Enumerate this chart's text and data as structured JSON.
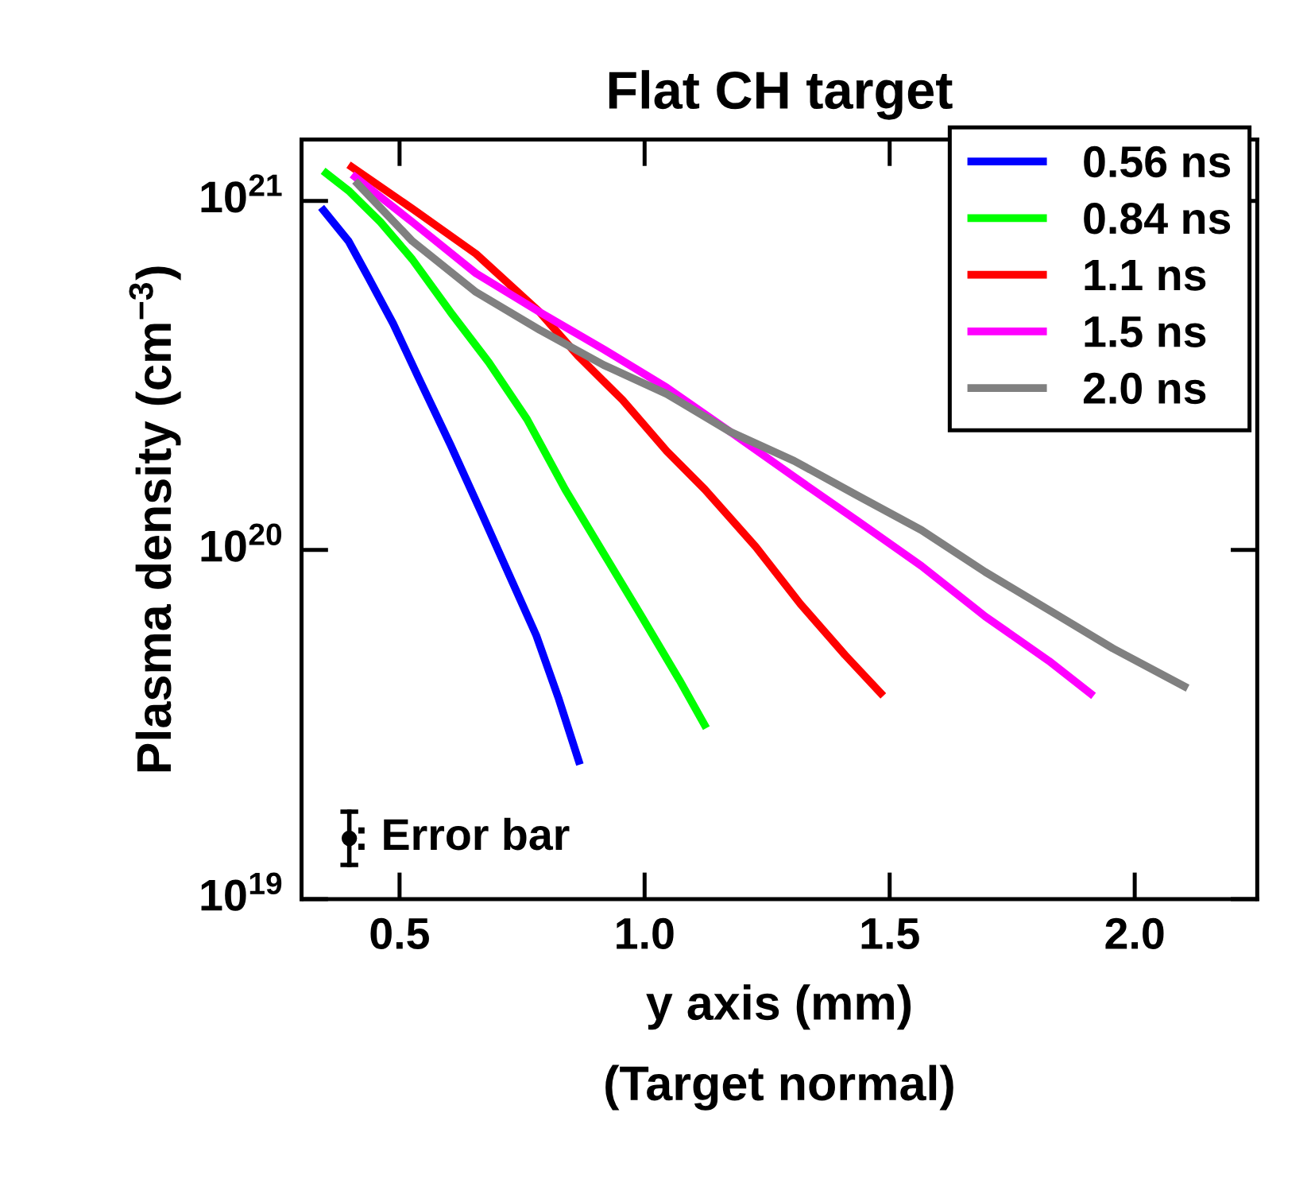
{
  "chart_data": {
    "type": "line",
    "title": "Flat CH target",
    "xlabel": "y axis (mm)\n(Target normal)",
    "ylabel": "Plasma density (cm$^{−3}$)",
    "log": "y",
    "xlim": [
      0.3,
      2.25
    ],
    "xticks": [
      {
        "value": 0.5,
        "label": "0.5"
      },
      {
        "value": 1.0,
        "label": "1.0"
      },
      {
        "value": 1.5,
        "label": "1.5"
      },
      {
        "value": 2.0,
        "label": "2.0"
      }
    ],
    "ylim": [
      1e+19,
      1.5e+21
    ],
    "yticks": [
      {
        "value": 1e+19,
        "label": "10$^{19}$"
      },
      {
        "value": 1e+20,
        "label": "10$^{20}$"
      },
      {
        "value": 1e+21,
        "label": "10$^{21}$"
      }
    ],
    "grid": false,
    "legend": "top right",
    "marker": "none",
    "line_style": "solid",
    "annotations": [
      ": Error bar"
    ],
    "series": [
      {
        "name": "0.56 ns",
        "color": "#0000ff",
        "x": [
          0.34,
          0.396,
          0.435,
          0.487,
          0.539,
          0.604,
          0.669,
          0.721,
          0.779,
          0.825,
          0.868
        ],
        "values": [
          9.58e+20,
          7.67e+20,
          6.09e+20,
          4.45e+20,
          3.11e+20,
          2e+20,
          1.26e+20,
          8.65e+19,
          5.69e+19,
          3.74e+19,
          2.43e+19
        ]
      },
      {
        "name": "0.84 ns",
        "color": "#00ff00",
        "x": [
          0.344,
          0.396,
          0.461,
          0.526,
          0.604,
          0.682,
          0.76,
          0.838,
          0.916,
          0.994,
          1.071,
          1.126
        ],
        "values": [
          1.22e+21,
          1.07e+21,
          8.7e+20,
          6.8e+20,
          4.8e+20,
          3.45e+20,
          2.37e+20,
          1.49e+20,
          9.8e+19,
          6.45e+19,
          4.24e+19,
          3.09e+19
        ]
      },
      {
        "name": "1.1 ns",
        "color": "#ff0000",
        "x": [
          0.396,
          0.526,
          0.656,
          0.786,
          0.864,
          0.955,
          1.045,
          1.123,
          1.227,
          1.318,
          1.409,
          1.487
        ],
        "values": [
          1.27e+21,
          9.5e+20,
          7.05e+20,
          4.8e+20,
          3.6e+20,
          2.69e+20,
          1.92e+20,
          1.49e+20,
          1.02e+20,
          7e+19,
          5e+19,
          3.82e+19
        ]
      },
      {
        "name": "1.5 ns",
        "color": "#ff00ff",
        "x": [
          0.403,
          0.526,
          0.656,
          0.786,
          0.916,
          1.045,
          1.175,
          1.305,
          1.435,
          1.565,
          1.695,
          1.825,
          1.916
        ],
        "values": [
          1.19e+21,
          8.7e+20,
          6.2e+20,
          4.8e+20,
          3.76e+20,
          2.92e+20,
          2.18e+20,
          1.62e+20,
          1.21e+20,
          9e+19,
          6.45e+19,
          4.81e+19,
          3.82e+19
        ]
      },
      {
        "name": "2.0 ns",
        "color": "#808080",
        "x": [
          0.409,
          0.526,
          0.656,
          0.786,
          0.916,
          1.045,
          1.175,
          1.305,
          1.435,
          1.565,
          1.695,
          1.825,
          1.955,
          2.108
        ],
        "values": [
          1.14e+21,
          7.67e+20,
          5.48e+20,
          4.27e+20,
          3.39e+20,
          2.8e+20,
          2.18e+20,
          1.8e+20,
          1.43e+20,
          1.14e+20,
          8.65e+19,
          6.73e+19,
          5.23e+19,
          4.02e+19
        ]
      }
    ]
  }
}
